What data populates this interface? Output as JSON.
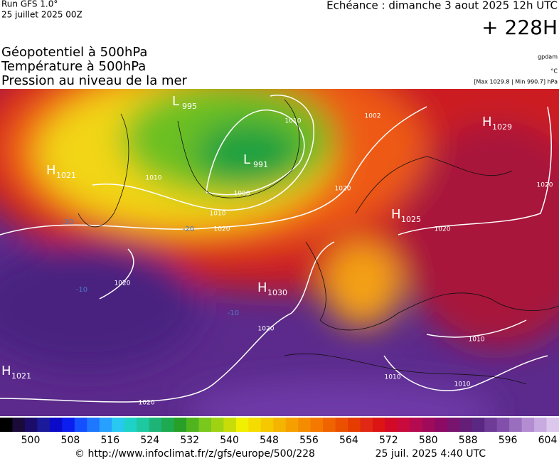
{
  "header": {
    "run": "Run GFS 1.0°",
    "run_date": "25 juillet 2025 00Z",
    "echeance": "Echéance : dimanche 3 aout 2025 12h UTC",
    "lead": "+ 228H"
  },
  "layers": [
    "Géopotentiel à 500hPa",
    "Température à 500hPa",
    "Pression au niveau de la mer"
  ],
  "units": [
    "gpdam",
    "°C",
    "[Max 1029.8 | Min 990.7] hPa"
  ],
  "pressure_centers": [
    {
      "type": "H",
      "value": "1021"
    },
    {
      "type": "L",
      "value": "995"
    },
    {
      "type": "L",
      "value": "991"
    },
    {
      "type": "H",
      "value": "1029"
    },
    {
      "type": "H",
      "value": "1025"
    },
    {
      "type": "H",
      "value": "1030"
    },
    {
      "type": "H",
      "value": "1021"
    }
  ],
  "isobar_labels": [
    "1010",
    "1002",
    "1010",
    "1000",
    "1010",
    "1020",
    "1020",
    "1020",
    "1020",
    "1020",
    "1020",
    "1020",
    "1010",
    "1010",
    "1010"
  ],
  "isotherm_labels": [
    "-20",
    "-20",
    "-10",
    "-10"
  ],
  "colorbar": {
    "ticks": [
      500,
      508,
      516,
      524,
      532,
      540,
      548,
      556,
      564,
      572,
      580,
      588,
      596,
      604
    ]
  },
  "footer": {
    "url": "© http://www.infoclimat.fr/z/gfs/europe/500/228",
    "generated": "25 juil. 2025  4:40 UTC"
  }
}
